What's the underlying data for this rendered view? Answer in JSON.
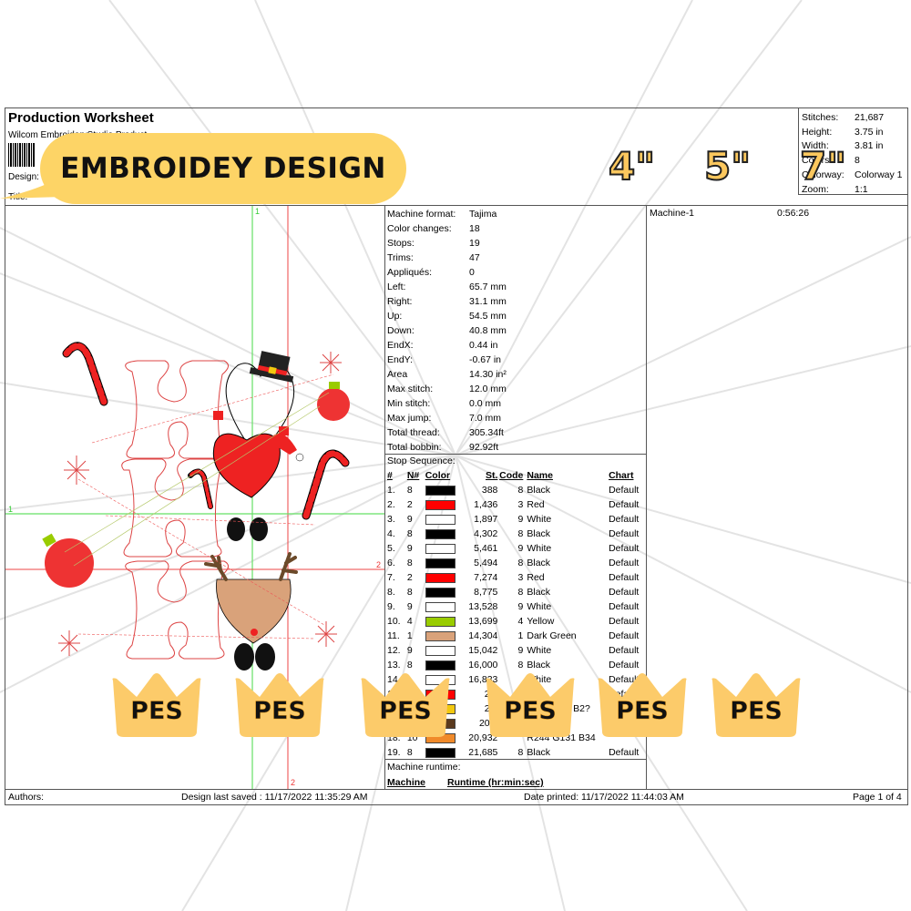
{
  "header": {
    "title": "Production Worksheet",
    "subtitle": "Wilcom EmbroideryStudio Product",
    "design_label": "Design:",
    "title_label": "Title:"
  },
  "summary": {
    "rows": [
      {
        "label": "Stitches:",
        "value": "21,687"
      },
      {
        "label": "Height:",
        "value": "3.75 in"
      },
      {
        "label": "Width:",
        "value": "3.81 in"
      },
      {
        "label": "Colors:",
        "value": "8"
      },
      {
        "label": "Colorway:",
        "value": "Colorway 1"
      },
      {
        "label": "Zoom:",
        "value": "1:1"
      }
    ]
  },
  "canvas": {
    "guides": {
      "v1_label": "1",
      "h1_label": "1",
      "v2_label": "2",
      "h2_label": "2"
    },
    "colors": {
      "guide_green": "#66e066",
      "guide_red": "#ee4444"
    }
  },
  "stats": {
    "rows": [
      {
        "label": "Machine format:",
        "value": "Tajima"
      },
      {
        "label": "Color changes:",
        "value": "18"
      },
      {
        "label": "Stops:",
        "value": "19"
      },
      {
        "label": "Trims:",
        "value": "47"
      },
      {
        "label": "Appliqués:",
        "value": "0"
      },
      {
        "label": "Left:",
        "value": "65.7 mm"
      },
      {
        "label": "Right:",
        "value": "31.1 mm"
      },
      {
        "label": "Up:",
        "value": "54.5 mm"
      },
      {
        "label": "Down:",
        "value": "40.8 mm"
      },
      {
        "label": "EndX:",
        "value": "0.44 in"
      },
      {
        "label": "EndY:",
        "value": "-0.67 in"
      },
      {
        "label": "Area",
        "value": " 14.30 in²"
      },
      {
        "label": "Max stitch:",
        "value": "12.0 mm"
      },
      {
        "label": "Min stitch:",
        "value": "0.0 mm"
      },
      {
        "label": "Max jump:",
        "value": "7.0 mm"
      },
      {
        "label": "Total thread:",
        "value": "305.34ft"
      },
      {
        "label": "Total bobbin:",
        "value": "92.92ft"
      }
    ]
  },
  "stop_sequence": {
    "title": "Stop Sequence:",
    "columns": [
      "#",
      "N#",
      "Color",
      "St.",
      "Code",
      "Name",
      "Chart"
    ],
    "rows": [
      {
        "num": "1.",
        "n": "8",
        "color": "#000000",
        "st": "388",
        "code": "8",
        "name": "Black",
        "chart": "Default"
      },
      {
        "num": "2.",
        "n": "2",
        "color": "#ff0000",
        "st": "1,436",
        "code": "3",
        "name": "Red",
        "chart": "Default"
      },
      {
        "num": "3.",
        "n": "9",
        "color": "#ffffff",
        "st": "1,897",
        "code": "9",
        "name": "White",
        "chart": "Default"
      },
      {
        "num": "4.",
        "n": "8",
        "color": "#000000",
        "st": "4,302",
        "code": "8",
        "name": "Black",
        "chart": "Default"
      },
      {
        "num": "5.",
        "n": "9",
        "color": "#ffffff",
        "st": "5,461",
        "code": "9",
        "name": "White",
        "chart": "Default"
      },
      {
        "num": "6.",
        "n": "8",
        "color": "#000000",
        "st": "5,494",
        "code": "8",
        "name": "Black",
        "chart": "Default"
      },
      {
        "num": "7.",
        "n": "2",
        "color": "#ff0000",
        "st": "7,274",
        "code": "3",
        "name": "Red",
        "chart": "Default"
      },
      {
        "num": "8.",
        "n": "8",
        "color": "#000000",
        "st": "8,775",
        "code": "8",
        "name": "Black",
        "chart": "Default"
      },
      {
        "num": "9.",
        "n": "9",
        "color": "#ffffff",
        "st": "13,528",
        "code": "9",
        "name": "White",
        "chart": "Default"
      },
      {
        "num": "10.",
        "n": "4",
        "color": "#99cc00",
        "st": "13,699",
        "code": "4",
        "name": "Yellow",
        "chart": "Default"
      },
      {
        "num": "11.",
        "n": "1",
        "color": "#d9a27a",
        "st": "14,304",
        "code": "1",
        "name": "Dark Green",
        "chart": "Default"
      },
      {
        "num": "12.",
        "n": "9",
        "color": "#ffffff",
        "st": "15,042",
        "code": "9",
        "name": "White",
        "chart": "Default"
      },
      {
        "num": "13.",
        "n": "8",
        "color": "#000000",
        "st": "16,000",
        "code": "8",
        "name": "Black",
        "chart": "Default"
      },
      {
        "num": "14.",
        "n": "",
        "color": "#ffffff",
        "st": "16,833",
        "code": "",
        "name": "White",
        "chart": "Default"
      },
      {
        "num": "15.",
        "n": "",
        "color": "#ff0000",
        "st": "20,",
        "code": "",
        "name": "Red",
        "chart": "Default"
      },
      {
        "num": "16.",
        "n": "",
        "color": "#f2c80f",
        "st": "20,",
        "code": "",
        "name": "R?? G202 B2?",
        "chart": ""
      },
      {
        "num": "17.",
        "n": "",
        "color": "#5a3a1e",
        "st": "20,8",
        "code": "",
        "name": "",
        "chart": ""
      },
      {
        "num": "18.",
        "n": "10",
        "color": "#f08a2a",
        "st": "20,932",
        "code": "",
        "name": "R244 G131 B34",
        "chart": ""
      },
      {
        "num": "19.",
        "n": "8",
        "color": "#000000",
        "st": "21,685",
        "code": "8",
        "name": "Black",
        "chart": "Default"
      }
    ]
  },
  "runtime": {
    "title": "Machine runtime:",
    "col_machine": "Machine",
    "col_runtime": "Runtime (hr:min:sec)"
  },
  "machine_panel": {
    "name": "Machine-1",
    "time": "0:56:26"
  },
  "footer": {
    "authors": "Authors:",
    "last_saved": "Design last saved : 11/17/2022 11:35:29 AM",
    "printed": "Date printed: 11/17/2022 11:44:03 AM",
    "page": "Page 1 of 4"
  },
  "overlay": {
    "banner_text": "EMBROIDEY DESIGN",
    "banner_color": "#fdd466",
    "sizes": [
      "4\"",
      "5\"",
      "7\""
    ],
    "size_color": "#fcc85e",
    "crown_label": "PES",
    "crown_color": "#fccb6a",
    "crown_count": 6
  }
}
